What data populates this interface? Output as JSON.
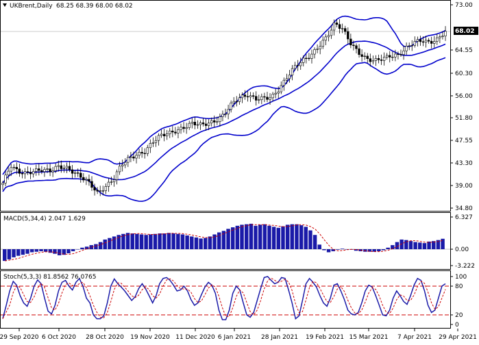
{
  "symbol_header": {
    "symbol": "UKBrent,Daily",
    "ohlc": "68.25 68.39 68.00 68.02",
    "arrow": "triangle-down-icon"
  },
  "price_panel": {
    "last_price_label": "68.02",
    "y_ticks": [
      "73.00",
      "68.70",
      "64.55",
      "60.30",
      "56.00",
      "51.80",
      "47.55",
      "43.30",
      "39.00",
      "34.80"
    ]
  },
  "macd_panel": {
    "header": "MACD(5,34,4) 2.047 1.629",
    "y_ticks": [
      "6.327",
      "0.00",
      "-3.222"
    ]
  },
  "stoch_panel": {
    "header": "Stoch(5,3,3) 81.8562 76.0765",
    "y_ticks": [
      "100",
      "80",
      "20",
      "0"
    ]
  },
  "x_axis": {
    "labels": [
      "29 Sep 2020",
      "6 Oct 2020",
      "28 Oct 2020",
      "19 Nov 2020",
      "11 Dec 2020",
      "6 Jan 2021",
      "28 Jan 2021",
      "19 Feb 2021",
      "15 Mar 2021",
      "7 Apr 2021",
      "29 Apr 2021"
    ]
  },
  "colors": {
    "bands": "#0000cc",
    "candle": "#000000",
    "macd_bar": "#1a1aa8",
    "signal": "#cc0000",
    "stoch_main": "#1a1aa8",
    "stoch_level": "#cc0000",
    "grid": "#c8c8c8"
  },
  "chart_data": [
    {
      "type": "candlestick",
      "title": "",
      "ylim": [
        34.8,
        73.0
      ],
      "close_path": [
        [
          "29 Sep 2020",
          39.5
        ],
        [
          "",
          42.8
        ],
        [
          "",
          41.6
        ],
        [
          "",
          41.3
        ],
        [
          "",
          41.8
        ],
        [
          "6 Oct 2020",
          42.0
        ],
        [
          "",
          41.8
        ],
        [
          "",
          42.6
        ],
        [
          "",
          42.4
        ],
        [
          "",
          41.5
        ],
        [
          "",
          40.6
        ],
        [
          "",
          39.5
        ],
        [
          "28 Oct 2020",
          37.6
        ],
        [
          "",
          38.8
        ],
        [
          "",
          40.2
        ],
        [
          "",
          43.0
        ],
        [
          "",
          44.2
        ],
        [
          "",
          44.8
        ],
        [
          "",
          45.4
        ],
        [
          "19 Nov 2020",
          47.3
        ],
        [
          "",
          48.5
        ],
        [
          "",
          48.9
        ],
        [
          "",
          49.3
        ],
        [
          "",
          50.0
        ],
        [
          "11 Dec 2020",
          50.8
        ],
        [
          "",
          50.5
        ],
        [
          "",
          50.7
        ],
        [
          "",
          51.2
        ],
        [
          "",
          52.4
        ],
        [
          "6 Jan 2021",
          54.5
        ],
        [
          "",
          55.6
        ],
        [
          "",
          56.0
        ],
        [
          "",
          55.3
        ],
        [
          "",
          55.5
        ],
        [
          "28 Jan 2021",
          55.6
        ],
        [
          "",
          57.2
        ],
        [
          "",
          59.5
        ],
        [
          "",
          61.5
        ],
        [
          "",
          62.6
        ],
        [
          "",
          63.5
        ],
        [
          "19 Feb 2021",
          65.2
        ],
        [
          "",
          67.0
        ],
        [
          "",
          69.5
        ],
        [
          "",
          68.5
        ],
        [
          "",
          65.8
        ],
        [
          "15 Mar 2021",
          64.0
        ],
        [
          "",
          62.8
        ],
        [
          "",
          62.5
        ],
        [
          "",
          62.9
        ],
        [
          "",
          63.4
        ],
        [
          "7 Apr 2021",
          63.5
        ],
        [
          "",
          64.8
        ],
        [
          "",
          66.0
        ],
        [
          "",
          66.3
        ],
        [
          "",
          65.9
        ],
        [
          "",
          66.5
        ],
        [
          "29 Apr 2021",
          68.02
        ]
      ],
      "bollinger_bands": "upper, middle and lower bands drawn",
      "last_price": 68.02
    },
    {
      "type": "bar",
      "title": "MACD(5,34,4) 2.047 1.629",
      "ylim": [
        -3.222,
        6.327
      ],
      "series": [
        {
          "name": "MACD",
          "values": [
            -2.3,
            -2.0,
            -1.6,
            -1.3,
            -1.1,
            -0.9,
            -0.6,
            -0.5,
            -0.4,
            -0.5,
            -0.7,
            -0.9,
            -1.2,
            -1.1,
            -0.8,
            -0.4,
            0.0,
            0.3,
            0.5,
            0.8,
            1.0,
            1.4,
            1.9,
            2.2,
            2.5,
            2.8,
            3.0,
            3.2,
            3.1,
            3.0,
            2.9,
            2.8,
            2.9,
            3.0,
            3.1,
            3.1,
            3.2,
            3.1,
            3.0,
            2.9,
            2.7,
            2.5,
            2.3,
            2.1,
            2.2,
            2.5,
            2.9,
            3.3,
            3.6,
            4.0,
            4.3,
            4.6,
            4.8,
            4.9,
            5.0,
            4.6,
            4.8,
            4.9,
            4.6,
            4.4,
            4.2,
            4.5,
            4.8,
            4.9,
            4.9,
            4.7,
            4.4,
            3.7,
            2.8,
            0.9,
            -0.2,
            -0.6,
            -0.4,
            -0.1,
            0.1,
            0.0,
            -0.1,
            -0.3,
            -0.4,
            -0.5,
            -0.5,
            -0.5,
            -0.4,
            -0.2,
            0.3,
            0.8,
            1.4,
            1.9,
            1.8,
            1.6,
            1.4,
            1.3,
            1.2,
            1.5,
            1.6,
            1.8,
            2.05
          ]
        }
      ]
    },
    {
      "type": "line",
      "title": "Stoch(5,3,3) 81.8562 76.0765",
      "ylim": [
        0,
        100
      ],
      "levels": [
        80,
        20
      ],
      "series": [
        {
          "name": "Stoch",
          "values": [
            12,
            40,
            70,
            90,
            82,
            60,
            45,
            38,
            55,
            80,
            93,
            85,
            55,
            28,
            22,
            40,
            70,
            88,
            92,
            80,
            72,
            88,
            96,
            80,
            55,
            45,
            20,
            12,
            12,
            18,
            45,
            80,
            95,
            85,
            78,
            70,
            60,
            50,
            58,
            75,
            85,
            74,
            60,
            45,
            60,
            85,
            96,
            98,
            92,
            82,
            70,
            72,
            80,
            70,
            52,
            40,
            45,
            62,
            78,
            88,
            82,
            65,
            30,
            10,
            10,
            30,
            65,
            80,
            72,
            45,
            20,
            15,
            25,
            50,
            75,
            98,
            100,
            92,
            85,
            88,
            98,
            96,
            72,
            45,
            12,
            18,
            50,
            85,
            96,
            88,
            78,
            60,
            45,
            38,
            55,
            82,
            85,
            70,
            52,
            30,
            22,
            20,
            25,
            45,
            70,
            82,
            78,
            60,
            40,
            20,
            18,
            30,
            55,
            70,
            60,
            48,
            42,
            60,
            82,
            96,
            92,
            70,
            40,
            25,
            30,
            55,
            80,
            85
          ]
        }
      ]
    }
  ]
}
